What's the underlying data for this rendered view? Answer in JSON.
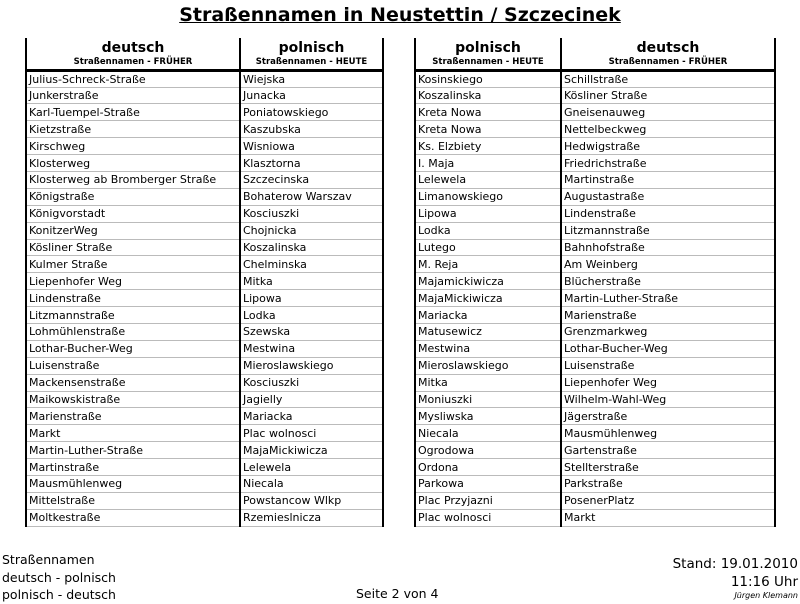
{
  "title": "Straßennamen in Neustettin / Szczecinek",
  "left_table": {
    "headers": [
      {
        "lang": "deutsch",
        "sub": "Straßennamen - FRÜHER"
      },
      {
        "lang": "polnisch",
        "sub": "Straßennamen - HEUTE"
      }
    ],
    "rows": [
      [
        "Julius-Schreck-Straße",
        "Wiejska"
      ],
      [
        "Junkerstraße",
        "Junacka"
      ],
      [
        "Karl-Tuempel-Straße",
        "Poniatowskiego"
      ],
      [
        "Kietzstraße",
        "Kaszubska"
      ],
      [
        "Kirschweg",
        "Wisniowa"
      ],
      [
        "Klosterweg",
        "Klasztorna"
      ],
      [
        "Klosterweg ab Bromberger Straße",
        "Szczecinska"
      ],
      [
        "Königstraße",
        "Bohaterow Warszav"
      ],
      [
        "Königvorstadt",
        "Kosciuszki"
      ],
      [
        "KonitzerWeg",
        "Chojnicka"
      ],
      [
        "Kösliner Straße",
        "Koszalinska"
      ],
      [
        "Kulmer Straße",
        "Chelminska"
      ],
      [
        "Liepenhofer Weg",
        "Mitka"
      ],
      [
        "Lindenstraße",
        "Lipowa"
      ],
      [
        "Litzmannstraße",
        "Lodka"
      ],
      [
        "Lohmühlenstraße",
        "Szewska"
      ],
      [
        "Lothar-Bucher-Weg",
        "Mestwina"
      ],
      [
        "Luisenstraße",
        "Mieroslawskiego"
      ],
      [
        "Mackensenstraße",
        "Kosciuszki"
      ],
      [
        "Maikowskistraße",
        "Jagielly"
      ],
      [
        "Marienstraße",
        "Mariacka"
      ],
      [
        "Markt",
        "Plac wolnosci"
      ],
      [
        "Martin-Luther-Straße",
        "MajaMickiwicza"
      ],
      [
        "Martinstraße",
        "Lelewela"
      ],
      [
        "Mausmühlenweg",
        "Niecala"
      ],
      [
        "Mittelstraße",
        "Powstancow Wlkp"
      ],
      [
        "Moltkestraße",
        "Rzemieslnicza"
      ]
    ]
  },
  "right_table": {
    "headers": [
      {
        "lang": "polnisch",
        "sub": "Straßennamen - HEUTE"
      },
      {
        "lang": "deutsch",
        "sub": "Straßennamen - FRÜHER"
      }
    ],
    "rows": [
      [
        "Kosinskiego",
        "Schillstraße"
      ],
      [
        "Koszalinska",
        "Kösliner Straße"
      ],
      [
        "Kreta Nowa",
        "Gneisenauweg"
      ],
      [
        "Kreta Nowa",
        "Nettelbeckweg"
      ],
      [
        "Ks. Elzbiety",
        "Hedwigstraße"
      ],
      [
        "I. Maja",
        "Friedrichstraße"
      ],
      [
        "Lelewela",
        "Martinstraße"
      ],
      [
        "Limanowskiego",
        "Augustastraße"
      ],
      [
        "Lipowa",
        "Lindenstraße"
      ],
      [
        "Lodka",
        "Litzmannstraße"
      ],
      [
        "Lutego",
        "Bahnhofstraße"
      ],
      [
        "M. Reja",
        "Am Weinberg"
      ],
      [
        "Majamickiwicza",
        "Blücherstraße"
      ],
      [
        "MajaMickiwicza",
        "Martin-Luther-Straße"
      ],
      [
        "Mariacka",
        "Marienstraße"
      ],
      [
        "Matusewicz",
        "Grenzmarkweg"
      ],
      [
        "Mestwina",
        "Lothar-Bucher-Weg"
      ],
      [
        "Mieroslawskiego",
        "Luisenstraße"
      ],
      [
        "Mitka",
        "Liepenhofer Weg"
      ],
      [
        "Moniuszki",
        "Wilhelm-Wahl-Weg"
      ],
      [
        "Mysliwska",
        "Jägerstraße"
      ],
      [
        "Niecala",
        "Mausmühlenweg"
      ],
      [
        "Ogrodowa",
        "Gartenstraße"
      ],
      [
        "Ordona",
        "Stellterstraße"
      ],
      [
        "Parkowa",
        "Parkstraße"
      ],
      [
        "Plac Przyjazni",
        "PosenerPlatz"
      ],
      [
        "Plac wolnosci",
        "Markt"
      ]
    ]
  },
  "footer": {
    "left": [
      "Straßennamen",
      "deutsch - polnisch",
      "polnisch - deutsch"
    ],
    "page": "Seite 2 von 4",
    "stand": "Stand: 19.01.2010",
    "time": "11:16 Uhr",
    "author": "Jürgen Klemann"
  }
}
